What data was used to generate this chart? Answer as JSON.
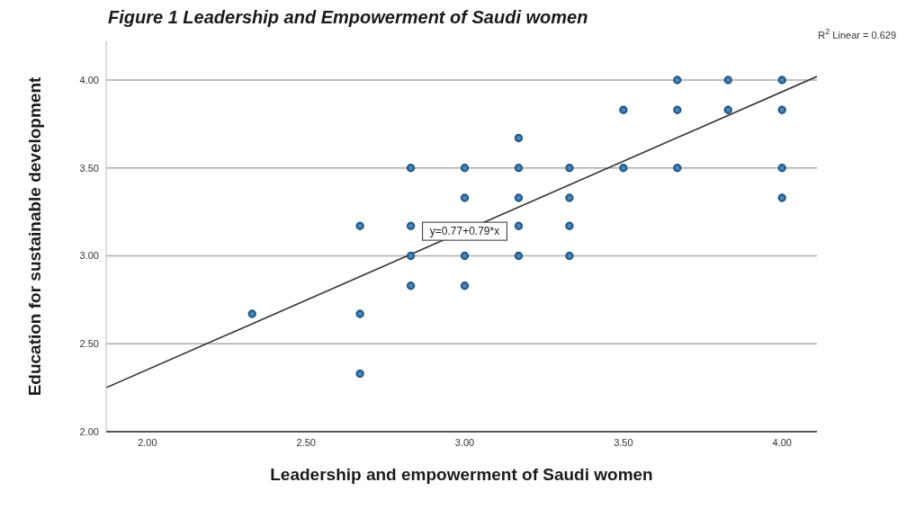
{
  "chart_data": {
    "type": "scatter",
    "title": "Figure 1 Leadership and Empowerment of Saudi women",
    "xlabel": "Leadership and empowerment of Saudi women",
    "ylabel": "Education for sustainable development",
    "xlim": [
      1.87,
      4.11
    ],
    "ylim": [
      2,
      4.22
    ],
    "xticks": [
      {
        "value": 2,
        "label": "2.00"
      },
      {
        "value": 2.5,
        "label": "2.50"
      },
      {
        "value": 3,
        "label": "3.00"
      },
      {
        "value": 3.5,
        "label": "3.50"
      },
      {
        "value": 4,
        "label": "4.00"
      }
    ],
    "yticks": [
      {
        "value": 2,
        "label": "2.00"
      },
      {
        "value": 2.5,
        "label": "2.50"
      },
      {
        "value": 3,
        "label": "3.00"
      },
      {
        "value": 3.5,
        "label": "3.50"
      },
      {
        "value": 4,
        "label": "4.00"
      }
    ],
    "grid": "y",
    "series": [
      {
        "marker": "circle",
        "color": "#1f5a8a",
        "x": [
          3.67,
          3.83,
          4.0,
          3.5,
          3.67,
          3.83,
          4.0,
          3.17,
          2.83,
          3.0,
          3.17,
          3.33,
          3.5,
          3.67,
          4.0,
          3.0,
          3.17,
          3.33,
          4.0,
          2.67,
          2.83,
          3.17,
          3.33,
          2.83,
          3.0,
          3.17,
          3.33,
          2.83,
          3.0,
          2.33,
          2.67,
          2.67
        ],
        "values": [
          4.0,
          4.0,
          4.0,
          3.83,
          3.83,
          3.83,
          3.83,
          3.67,
          3.5,
          3.5,
          3.5,
          3.5,
          3.5,
          3.5,
          3.5,
          3.33,
          3.33,
          3.33,
          3.33,
          3.17,
          3.17,
          3.17,
          3.17,
          3.0,
          3.0,
          3.0,
          3.0,
          2.83,
          2.83,
          2.67,
          2.67,
          2.33
        ]
      },
      {
        "type": "line",
        "marker": "none",
        "color": "#333333",
        "x": [
          1.87,
          4.11
        ],
        "values": [
          2.25,
          4.02
        ]
      }
    ],
    "annotations": [
      {
        "text": "y=0.77+0.79*x",
        "x": 3.0,
        "y": 3.14
      },
      "R$^{2}$ Linear = 0.629"
    ]
  }
}
